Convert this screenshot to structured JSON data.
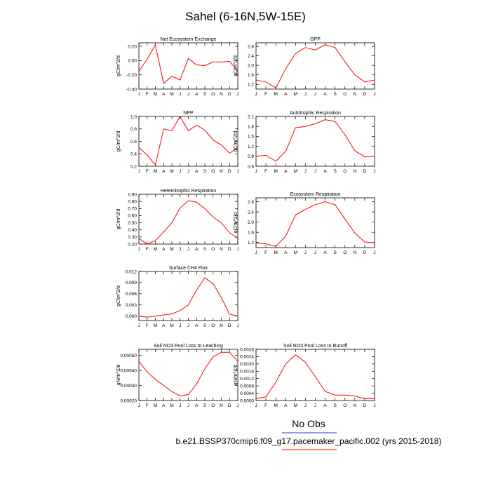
{
  "figure": {
    "title": "Sahel (6-16N,5W-15E)",
    "legend_label": "No Obs",
    "caption": "b.e21.BSSP370cmip6.f09_g17.pacemaker_pacific.002 (yrs 2015-2018)",
    "line_color": "#ff0000",
    "legend_line_color": "#1f3fbf",
    "caption_line_color": "#ff0000"
  },
  "chart_data": [
    {
      "type": "line",
      "title": "Net Ecosystem Exchange",
      "ylabel": "gC/m^2/d",
      "categories": [
        "J",
        "F",
        "M",
        "A",
        "M",
        "J",
        "J",
        "A",
        "S",
        "O",
        "N",
        "D",
        "J"
      ],
      "values": [
        -0.15,
        0.02,
        0.22,
        -0.32,
        -0.22,
        -0.27,
        0.03,
        -0.06,
        -0.07,
        -0.02,
        -0.02,
        -0.01,
        -0.15
      ],
      "ylim": [
        -0.4,
        0.25
      ],
      "yticks": [
        "0.20",
        "0.00",
        "-0.20",
        "-0.40"
      ],
      "ytick_values": [
        0.2,
        0.0,
        -0.2,
        -0.4
      ]
    },
    {
      "type": "line",
      "title": "GPP",
      "ylabel": "gC/m^2/d",
      "categories": [
        "J",
        "F",
        "M",
        "A",
        "M",
        "J",
        "J",
        "A",
        "S",
        "O",
        "N",
        "D",
        "J"
      ],
      "values": [
        1.38,
        1.3,
        1.05,
        1.85,
        2.5,
        2.75,
        2.65,
        2.87,
        2.75,
        2.15,
        1.6,
        1.3,
        1.38
      ],
      "ylim": [
        1.0,
        2.95
      ],
      "yticks": [
        "2.8",
        "2.4",
        "2.0",
        "1.6",
        "1.2"
      ],
      "ytick_values": [
        2.8,
        2.4,
        2.0,
        1.6,
        1.2
      ]
    },
    {
      "type": "line",
      "title": "NPP",
      "ylabel": "gC/m^2/d",
      "categories": [
        "J",
        "F",
        "M",
        "A",
        "M",
        "J",
        "J",
        "A",
        "S",
        "O",
        "N",
        "D",
        "J"
      ],
      "values": [
        0.5,
        0.38,
        0.22,
        0.8,
        0.77,
        1.0,
        0.77,
        0.86,
        0.78,
        0.62,
        0.54,
        0.41,
        0.5
      ],
      "ylim": [
        0.2,
        1.0
      ],
      "yticks": [
        "1.0",
        "0.8",
        "0.6",
        "0.4",
        "0.2"
      ],
      "ytick_values": [
        1.0,
        0.8,
        0.6,
        0.4,
        0.2
      ]
    },
    {
      "type": "line",
      "title": "Autotrophic Respiration",
      "ylabel": "gC/m^2/d",
      "categories": [
        "J",
        "F",
        "M",
        "A",
        "M",
        "J",
        "J",
        "A",
        "S",
        "O",
        "N",
        "D",
        "J"
      ],
      "values": [
        0.9,
        0.93,
        0.75,
        1.05,
        1.76,
        1.8,
        1.88,
        2.0,
        1.95,
        1.55,
        1.07,
        0.88,
        0.9
      ],
      "ylim": [
        0.6,
        2.1
      ],
      "yticks": [
        "2.1",
        "1.8",
        "1.5",
        "1.2",
        "0.9",
        "0.6"
      ],
      "ytick_values": [
        2.1,
        1.8,
        1.5,
        1.2,
        0.9,
        0.6
      ]
    },
    {
      "type": "line",
      "title": "Heterotrophic Respiration",
      "ylabel": "gC/m^2/d",
      "categories": [
        "J",
        "F",
        "M",
        "A",
        "M",
        "J",
        "J",
        "A",
        "S",
        "O",
        "N",
        "D",
        "J"
      ],
      "values": [
        0.28,
        0.2,
        0.25,
        0.37,
        0.5,
        0.71,
        0.81,
        0.79,
        0.7,
        0.58,
        0.5,
        0.36,
        0.28
      ],
      "ylim": [
        0.2,
        0.9
      ],
      "yticks": [
        "0.90",
        "0.80",
        "0.70",
        "0.60",
        "0.50",
        "0.40",
        "0.30",
        "0.20"
      ],
      "ytick_values": [
        0.9,
        0.8,
        0.7,
        0.6,
        0.5,
        0.4,
        0.3,
        0.2
      ]
    },
    {
      "type": "line",
      "title": "Ecosystem Respiration",
      "ylabel": "gC/m^2/d",
      "categories": [
        "J",
        "F",
        "M",
        "A",
        "M",
        "J",
        "J",
        "A",
        "S",
        "O",
        "N",
        "D",
        "J"
      ],
      "values": [
        1.18,
        1.15,
        1.05,
        1.45,
        2.28,
        2.5,
        2.68,
        2.8,
        2.68,
        2.12,
        1.57,
        1.22,
        1.18
      ],
      "ylim": [
        1.0,
        2.95
      ],
      "yticks": [
        "2.8",
        "2.4",
        "2.0",
        "1.6",
        "1.2"
      ],
      "ytick_values": [
        2.8,
        2.4,
        2.0,
        1.6,
        1.2
      ]
    },
    {
      "type": "line",
      "title": "Surface CH4 Flux",
      "ylabel": "gC/m^2/d",
      "categories": [
        "J",
        "F",
        "M",
        "A",
        "M",
        "J",
        "J",
        "A",
        "S",
        "O",
        "N",
        "D",
        "J"
      ],
      "values": [
        0.0,
        -0.0003,
        0.0,
        0.0003,
        0.0006,
        0.0015,
        0.003,
        0.007,
        0.0103,
        0.0087,
        0.005,
        0.0005,
        0.0
      ],
      "ylim": [
        -0.0012,
        0.012
      ],
      "yticks": [
        "0.012",
        "0.009",
        "0.006",
        "0.003",
        "0.000"
      ],
      "ytick_values": [
        0.012,
        0.009,
        0.006,
        0.003,
        0.0
      ]
    },
    {
      "type": "line",
      "title": "Soil NO3 Pool Loss to Leaching",
      "ylabel": "gN/m^2/d",
      "categories": [
        "J",
        "F",
        "M",
        "A",
        "M",
        "J",
        "J",
        "A",
        "S",
        "O",
        "N",
        "D",
        "J"
      ],
      "values": [
        0.00046,
        0.00039,
        0.00034,
        0.0003,
        0.00026,
        0.00023,
        0.00024,
        0.00031,
        0.00041,
        0.00049,
        0.00052,
        0.00052,
        0.00046
      ],
      "ylim": [
        0.0002,
        0.00054
      ],
      "yticks": [
        "0.00050",
        "0.00040",
        "0.00030",
        "0.00020"
      ],
      "ytick_values": [
        0.0005,
        0.0004,
        0.0003,
        0.0002
      ]
    },
    {
      "type": "line",
      "title": "Soil NO3 Pool Loss to Runoff",
      "ylabel": "gN/m^2/d",
      "categories": [
        "J",
        "F",
        "M",
        "A",
        "M",
        "J",
        "J",
        "A",
        "S",
        "O",
        "N",
        "D",
        "J"
      ],
      "values": [
        0.0001,
        0.0002,
        0.001,
        0.002,
        0.0025,
        0.0021,
        0.0013,
        0.0005,
        0.0003,
        0.0003,
        0.00025,
        0.0001,
        0.0001
      ],
      "ylim": [
        0.0,
        0.0028
      ],
      "yticks": [
        "0.0028",
        "0.0024",
        "0.0020",
        "0.0016",
        "0.0012",
        "0.0008",
        "0.0004",
        "0.0000"
      ],
      "ytick_values": [
        0.0028,
        0.0024,
        0.002,
        0.0016,
        0.0012,
        0.0008,
        0.0004,
        0.0
      ]
    }
  ]
}
